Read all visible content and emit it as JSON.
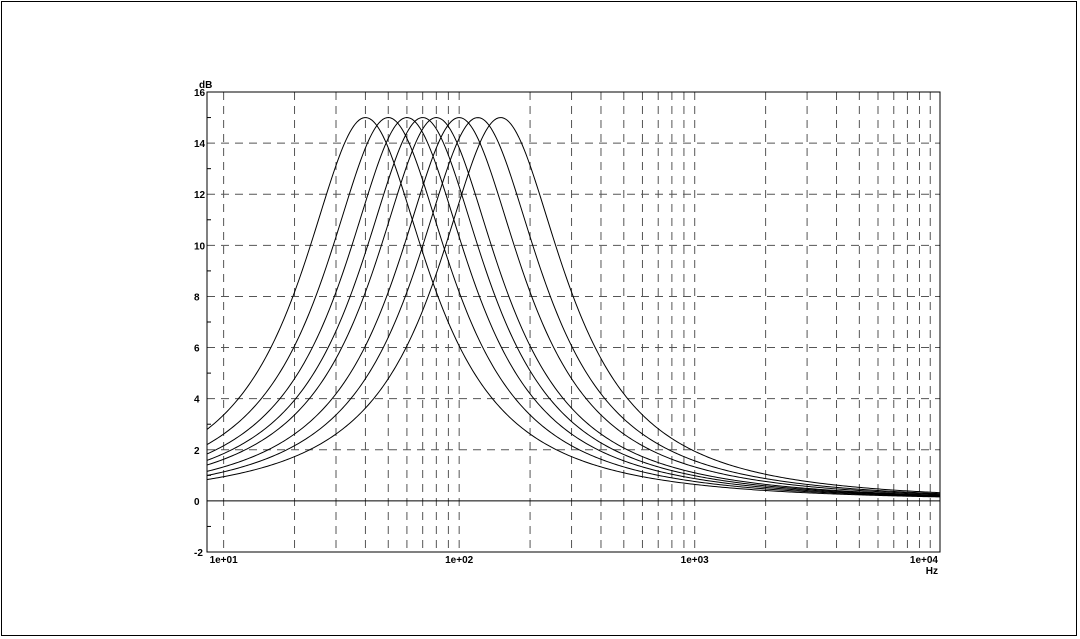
{
  "chart_data": {
    "type": "line",
    "title": "",
    "xlabel": "Hz",
    "ylabel": "dB",
    "x_scale": "log",
    "xlim": [
      8.5,
      11000
    ],
    "ylim": [
      -2,
      16
    ],
    "grid": true,
    "x_tick_labels": [
      {
        "value": 10,
        "label": "1e+01"
      },
      {
        "value": 100,
        "label": "1e+02"
      },
      {
        "value": 1000,
        "label": "1e+03"
      },
      {
        "value": 10000,
        "label": "1e+04"
      }
    ],
    "y_ticks": [
      -2,
      0,
      2,
      4,
      6,
      8,
      10,
      12,
      14,
      16
    ],
    "curve_family": {
      "description_of_shape": "peaking boost curves",
      "peak_gain_db": 15,
      "peak_frequencies_hz": [
        40,
        50,
        60,
        70,
        80,
        100,
        120,
        150
      ],
      "bandwidth_octaves": 2.2
    }
  }
}
